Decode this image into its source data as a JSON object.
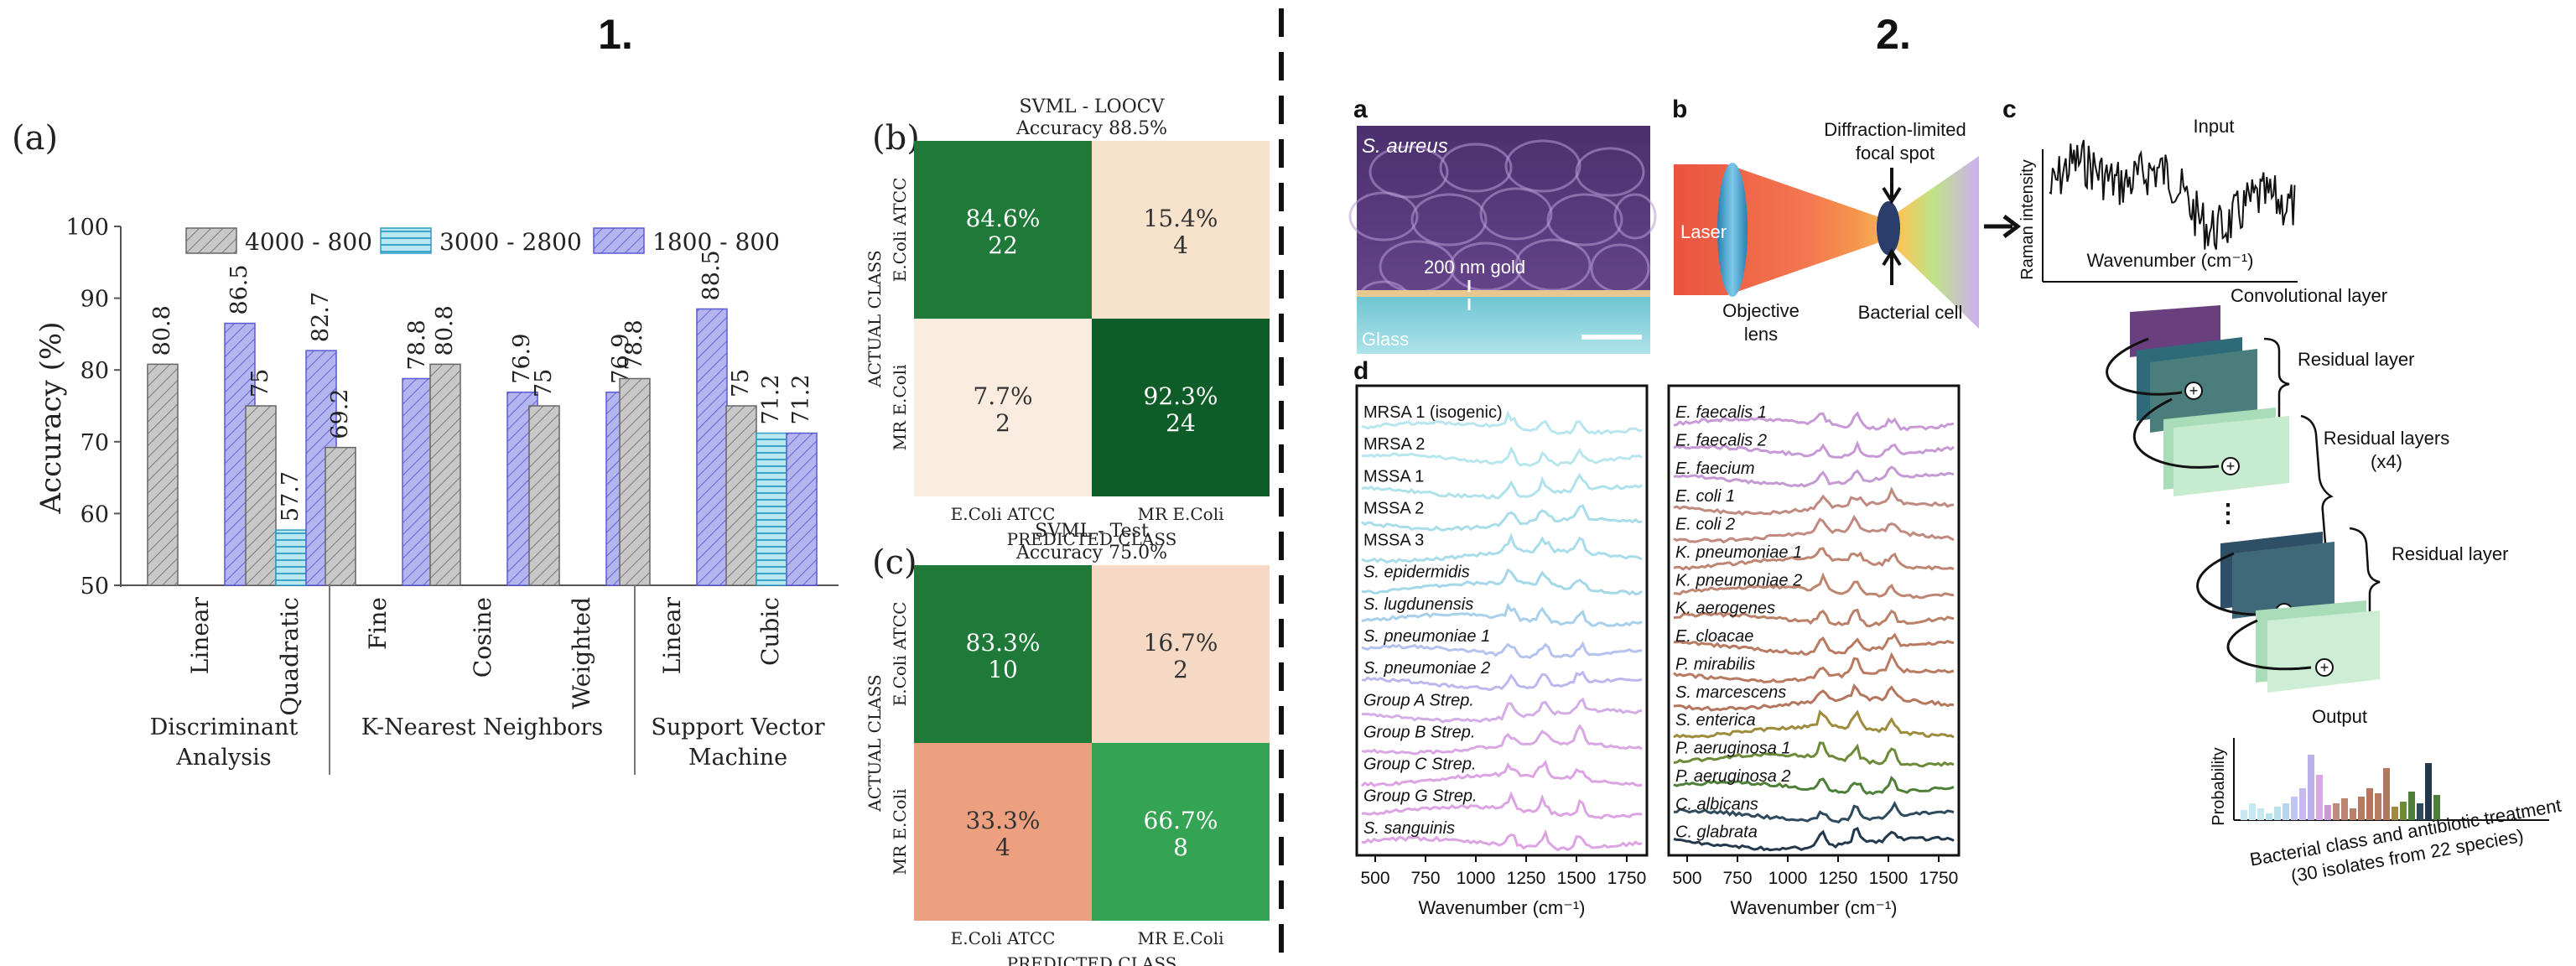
{
  "panel_numbers": {
    "left": "1.",
    "right": "2."
  },
  "panel_a": {
    "label": "(a)",
    "ylabel": "Accuracy (%)",
    "legend": [
      "4000 - 800",
      "3000 - 2800",
      "1800 - 800"
    ],
    "groups": [
      "Discriminant",
      "Analysis",
      "K-Nearest Neighbors",
      "Support Vector",
      "Machine"
    ]
  },
  "chart_data": [
    {
      "type": "bar",
      "title": "",
      "xlabel": "",
      "ylabel": "Accuracy (%)",
      "ylim": [
        50,
        100
      ],
      "yticks": [
        50,
        60,
        70,
        80,
        90,
        100
      ],
      "categories": [
        "Linear",
        "Quadratic",
        "Fine",
        "Cosine",
        "Weighted",
        "Linear",
        "Cubic"
      ],
      "category_groups": [
        "Discriminant Analysis",
        "Discriminant Analysis",
        "K-Nearest Neighbors",
        "K-Nearest Neighbors",
        "K-Nearest Neighbors",
        "Support Vector Machine",
        "Support Vector Machine"
      ],
      "legend_placement": "top",
      "series": [
        {
          "name": "4000 - 800",
          "values": [
            80.8,
            75,
            69.2,
            80.8,
            75,
            78.8,
            75
          ],
          "labels": [
            "80.8",
            "75",
            "69.2",
            "80.8",
            "75",
            "78.8",
            "75"
          ]
        },
        {
          "name": "3000 - 2800",
          "values": [
            null,
            57.7,
            null,
            null,
            null,
            null,
            71.2
          ],
          "labels": [
            null,
            "57.7",
            null,
            null,
            null,
            null,
            "71.2"
          ]
        },
        {
          "name": "1800 - 800",
          "values": [
            86.5,
            82.7,
            78.8,
            76.9,
            76.9,
            88.5,
            71.2
          ],
          "labels": [
            "86.5",
            "82.7",
            "78.8",
            "76.9",
            "76.9",
            "88.5",
            "71.2"
          ]
        }
      ]
    },
    {
      "type": "heatmap",
      "panel": "(b)",
      "title": "SVML - LOOCV",
      "subtitle": "Accuracy 88.5%",
      "xlabel": "PREDICTED CLASS",
      "ylabel": "ACTUAL CLASS",
      "classes": [
        "E.Coli ATCC",
        "MR E.Coli"
      ],
      "cells": [
        [
          {
            "pct": "84.6%",
            "count": "22",
            "color": "#1f7a3a",
            "text": "#ffffff"
          },
          {
            "pct": "15.4%",
            "count": "4",
            "color": "#f7e3cc",
            "text": "#333333"
          }
        ],
        [
          {
            "pct": "7.7%",
            "count": "2",
            "color": "#fbece0",
            "text": "#333333"
          },
          {
            "pct": "92.3%",
            "count": "24",
            "color": "#0e5c28",
            "text": "#ffffff"
          }
        ]
      ]
    },
    {
      "type": "heatmap",
      "panel": "(c)",
      "title": "SVML - Test",
      "subtitle": "Accuracy 75.0%",
      "xlabel": "PREDICTED CLASS",
      "ylabel": "ACTUAL CLASS",
      "classes": [
        "E.Coli ATCC",
        "MR E.Coli"
      ],
      "cells": [
        [
          {
            "pct": "83.3%",
            "count": "10",
            "color": "#1f7a3a",
            "text": "#ffffff"
          },
          {
            "pct": "16.7%",
            "count": "2",
            "color": "#f5d9c4",
            "text": "#333333"
          }
        ],
        [
          {
            "pct": "33.3%",
            "count": "4",
            "color": "#eca07f",
            "text": "#333333"
          },
          {
            "pct": "66.7%",
            "count": "8",
            "color": "#34a353",
            "text": "#ffffff"
          }
        ]
      ]
    }
  ],
  "fig2": {
    "a_label": "a",
    "b_label": "b",
    "c_label": "c",
    "d_label": "d",
    "a_species": "S. aureus",
    "a_gold": "200 nm gold",
    "a_glass": "Glass",
    "b_focal": "Diffraction-limited focal spot",
    "b_focal_1": "Diffraction-limited",
    "b_focal_2": "focal spot",
    "b_laser": "Laser",
    "b_obj_1": "Objective",
    "b_obj_2": "lens",
    "b_cell": "Bacterial cell",
    "c_input": "Input",
    "c_raman": "Raman intensity",
    "c_wavenumber": "Wavenumber (cm⁻¹)",
    "c_conv": "Convolutional layer",
    "c_res1": "Residual layer",
    "c_res_x4_1": "Residual layers",
    "c_res_x4_2": "(x4)",
    "c_res2": "Residual layer",
    "c_output": "Output",
    "c_prob": "Probability",
    "c_xlab_1": "Bacterial class and antibiotic treatment",
    "c_xlab_2": "(30 isolates from 22 species)",
    "d_xlabel": "Wavenumber (cm⁻¹)",
    "d_ticks": [
      "500",
      "750",
      "1000",
      "1250",
      "1500",
      "1750"
    ],
    "d_left": [
      {
        "name": "MRSA 1 (isogenic)",
        "italic": false,
        "color": "#b8e6ee"
      },
      {
        "name": "MRSA 2",
        "italic": false,
        "color": "#b8e6ee"
      },
      {
        "name": "MSSA 1",
        "italic": false,
        "color": "#b0e2ec"
      },
      {
        "name": "MSSA 2",
        "italic": false,
        "color": "#a8dde9"
      },
      {
        "name": "MSSA 3",
        "italic": false,
        "color": "#a8dde9"
      },
      {
        "name": "S. epidermidis",
        "italic": true,
        "color": "#a4d8e8"
      },
      {
        "name": "S. lugdunensis",
        "italic": true,
        "color": "#a8d0ea"
      },
      {
        "name": "S. pneumoniae 1",
        "italic": true,
        "color": "#b4c2ee"
      },
      {
        "name": "S. pneumoniae 2",
        "italic": true,
        "color": "#bcb8ee"
      },
      {
        "name": "Group A Strep.",
        "italic": true,
        "color": "#d3aee6"
      },
      {
        "name": "Group B Strep.",
        "italic": true,
        "color": "#d9a8e4"
      },
      {
        "name": "Group C Strep.",
        "italic": true,
        "color": "#dca4e2"
      },
      {
        "name": "Group G Strep.",
        "italic": true,
        "color": "#dca4e2"
      },
      {
        "name": "S. sanguinis",
        "italic": true,
        "color": "#dca4e2"
      }
    ],
    "d_right": [
      {
        "name": "E. faecalis 1",
        "italic": true,
        "color": "#c79ad6"
      },
      {
        "name": "E. faecalis 2",
        "italic": true,
        "color": "#c79ad6"
      },
      {
        "name": "E. faecium",
        "italic": true,
        "color": "#c39ad2"
      },
      {
        "name": "E. coli 1",
        "italic": true,
        "color": "#c08a80"
      },
      {
        "name": "E. coli 2",
        "italic": true,
        "color": "#c08a80"
      },
      {
        "name": "K. pneumoniae 1",
        "italic": true,
        "color": "#be8672"
      },
      {
        "name": "K. pneumoniae 2",
        "italic": true,
        "color": "#be8672"
      },
      {
        "name": "K. aerogenes",
        "italic": true,
        "color": "#bb8068"
      },
      {
        "name": "E. cloacae",
        "italic": true,
        "color": "#b97a62"
      },
      {
        "name": "P. mirabilis",
        "italic": true,
        "color": "#b97a62"
      },
      {
        "name": "S. marcescens",
        "italic": true,
        "color": "#b4765e"
      },
      {
        "name": "S. enterica",
        "italic": true,
        "color": "#9c8c3c"
      },
      {
        "name": "P. aeruginosa 1",
        "italic": true,
        "color": "#6c8a38"
      },
      {
        "name": "P. aeruginosa 2",
        "italic": true,
        "color": "#4e7f38"
      },
      {
        "name": "C. albicans",
        "italic": true,
        "color": "#2f4a5c"
      },
      {
        "name": "C. glabrata",
        "italic": true,
        "color": "#23384a"
      }
    ]
  },
  "colors": {
    "grey_bar": "#c8c8c8",
    "cyan_bar": "#b9e7f2",
    "purple_bar": "#b4b4ef",
    "sem_purple": "#5e3f82",
    "layer_purple": "#6a3f7e",
    "layer_teal": "#4b7d7d",
    "layer_green": "#a9dcb8",
    "layer_navy": "#2e4f66"
  }
}
